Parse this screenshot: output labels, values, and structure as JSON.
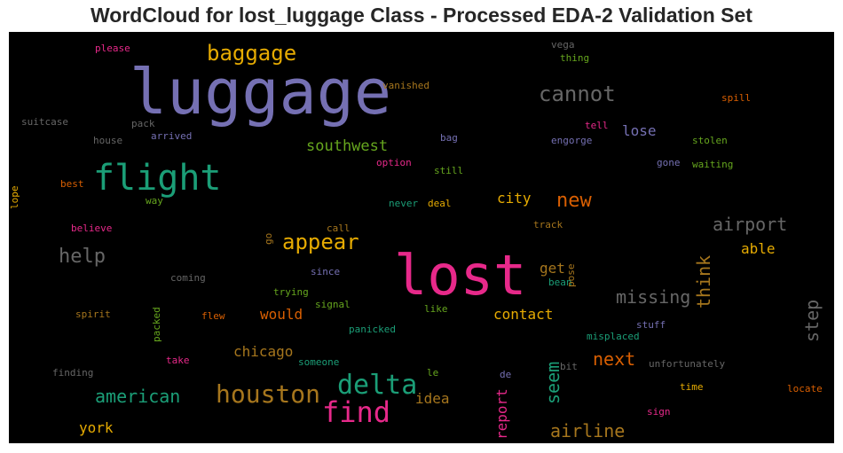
{
  "chart_data": {
    "type": "wordcloud",
    "title": "WordCloud for lost_luggage Class - Processed EDA-2 Validation Set",
    "background": "#000000",
    "colormap": [
      "#7570b3",
      "#e7298a",
      "#1b9e77",
      "#d95f02",
      "#e6ab02",
      "#66a61e",
      "#a6761d",
      "#666666"
    ],
    "words": [
      {
        "text": "luggage",
        "color": "#7570b3",
        "rotate": false
      },
      {
        "text": "lost",
        "color": "#e7298a",
        "rotate": false
      },
      {
        "text": "flight",
        "color": "#1b9e77",
        "rotate": false
      },
      {
        "text": "houston",
        "color": "#a6761d",
        "rotate": false
      },
      {
        "text": "find",
        "color": "#e7298a",
        "rotate": false
      },
      {
        "text": "delta",
        "color": "#1b9e77",
        "rotate": false
      },
      {
        "text": "cannot",
        "color": "#666666",
        "rotate": false
      },
      {
        "text": "baggage",
        "color": "#e6ab02",
        "rotate": false
      },
      {
        "text": "appear",
        "color": "#e6ab02",
        "rotate": false
      },
      {
        "text": "help",
        "color": "#666666",
        "rotate": false
      },
      {
        "text": "new",
        "color": "#d95f02",
        "rotate": false
      },
      {
        "text": "airport",
        "color": "#666666",
        "rotate": false
      },
      {
        "text": "missing",
        "color": "#666666",
        "rotate": false
      },
      {
        "text": "american",
        "color": "#1b9e77",
        "rotate": false
      },
      {
        "text": "airline",
        "color": "#a6761d",
        "rotate": false
      },
      {
        "text": "next",
        "color": "#d95f02",
        "rotate": false
      },
      {
        "text": "seem",
        "color": "#1b9e77",
        "rotate": true
      },
      {
        "text": "think",
        "color": "#a6761d",
        "rotate": true
      },
      {
        "text": "step",
        "color": "#666666",
        "rotate": true
      },
      {
        "text": "southwest",
        "color": "#66a61e",
        "rotate": false
      },
      {
        "text": "lose",
        "color": "#7570b3",
        "rotate": false
      },
      {
        "text": "city",
        "color": "#e6ab02",
        "rotate": false
      },
      {
        "text": "contact",
        "color": "#e6ab02",
        "rotate": false
      },
      {
        "text": "would",
        "color": "#d95f02",
        "rotate": false
      },
      {
        "text": "chicago",
        "color": "#a6761d",
        "rotate": false
      },
      {
        "text": "york",
        "color": "#e6ab02",
        "rotate": false
      },
      {
        "text": "report",
        "color": "#e7298a",
        "rotate": true
      },
      {
        "text": "able",
        "color": "#e6ab02",
        "rotate": false
      },
      {
        "text": "get",
        "color": "#a6761d",
        "rotate": false
      },
      {
        "text": "idea",
        "color": "#a6761d",
        "rotate": false
      },
      {
        "text": "please",
        "color": "#e7298a",
        "rotate": false
      },
      {
        "text": "vega",
        "color": "#666666",
        "rotate": false
      },
      {
        "text": "thing",
        "color": "#66a61e",
        "rotate": false
      },
      {
        "text": "vanished",
        "color": "#a6761d",
        "rotate": false
      },
      {
        "text": "spill",
        "color": "#d95f02",
        "rotate": false
      },
      {
        "text": "suitcase",
        "color": "#666666",
        "rotate": false
      },
      {
        "text": "pack",
        "color": "#666666",
        "rotate": false
      },
      {
        "text": "tell",
        "color": "#e7298a",
        "rotate": false
      },
      {
        "text": "arrived",
        "color": "#7570b3",
        "rotate": false
      },
      {
        "text": "house",
        "color": "#666666",
        "rotate": false
      },
      {
        "text": "bag",
        "color": "#7570b3",
        "rotate": false
      },
      {
        "text": "engorge",
        "color": "#7570b3",
        "rotate": false
      },
      {
        "text": "stolen",
        "color": "#66a61e",
        "rotate": false
      },
      {
        "text": "option",
        "color": "#e7298a",
        "rotate": false
      },
      {
        "text": "gone",
        "color": "#7570b3",
        "rotate": false
      },
      {
        "text": "waiting",
        "color": "#66a61e",
        "rotate": false
      },
      {
        "text": "still",
        "color": "#66a61e",
        "rotate": false
      },
      {
        "text": "best",
        "color": "#d95f02",
        "rotate": false
      },
      {
        "text": "way",
        "color": "#66a61e",
        "rotate": false
      },
      {
        "text": "lope",
        "color": "#e6ab02",
        "rotate": true
      },
      {
        "text": "never",
        "color": "#1b9e77",
        "rotate": false
      },
      {
        "text": "deal",
        "color": "#e6ab02",
        "rotate": false
      },
      {
        "text": "believe",
        "color": "#e7298a",
        "rotate": false
      },
      {
        "text": "call",
        "color": "#a6761d",
        "rotate": false
      },
      {
        "text": "track",
        "color": "#a6761d",
        "rotate": false
      },
      {
        "text": "go",
        "color": "#a6761d",
        "rotate": true
      },
      {
        "text": "since",
        "color": "#7570b3",
        "rotate": false
      },
      {
        "text": "coming",
        "color": "#666666",
        "rotate": false
      },
      {
        "text": "bean",
        "color": "#1b9e77",
        "rotate": false
      },
      {
        "text": "pose",
        "color": "#a6761d",
        "rotate": true
      },
      {
        "text": "trying",
        "color": "#66a61e",
        "rotate": false
      },
      {
        "text": "signal",
        "color": "#66a61e",
        "rotate": false
      },
      {
        "text": "like",
        "color": "#66a61e",
        "rotate": false
      },
      {
        "text": "spirit",
        "color": "#a6761d",
        "rotate": false
      },
      {
        "text": "flew",
        "color": "#d95f02",
        "rotate": false
      },
      {
        "text": "panicked",
        "color": "#1b9e77",
        "rotate": false
      },
      {
        "text": "stuff",
        "color": "#7570b3",
        "rotate": false
      },
      {
        "text": "misplaced",
        "color": "#1b9e77",
        "rotate": false
      },
      {
        "text": "packed",
        "color": "#66a61e",
        "rotate": true
      },
      {
        "text": "take",
        "color": "#e7298a",
        "rotate": false
      },
      {
        "text": "someone",
        "color": "#1b9e77",
        "rotate": false
      },
      {
        "text": "finding",
        "color": "#666666",
        "rotate": false
      },
      {
        "text": "le",
        "color": "#66a61e",
        "rotate": false
      },
      {
        "text": "de",
        "color": "#7570b3",
        "rotate": false
      },
      {
        "text": "bit",
        "color": "#666666",
        "rotate": false
      },
      {
        "text": "unfortunately",
        "color": "#666666",
        "rotate": false
      },
      {
        "text": "time",
        "color": "#e6ab02",
        "rotate": false
      },
      {
        "text": "locate",
        "color": "#d95f02",
        "rotate": false
      },
      {
        "text": "sign",
        "color": "#e7298a",
        "rotate": false
      }
    ]
  }
}
